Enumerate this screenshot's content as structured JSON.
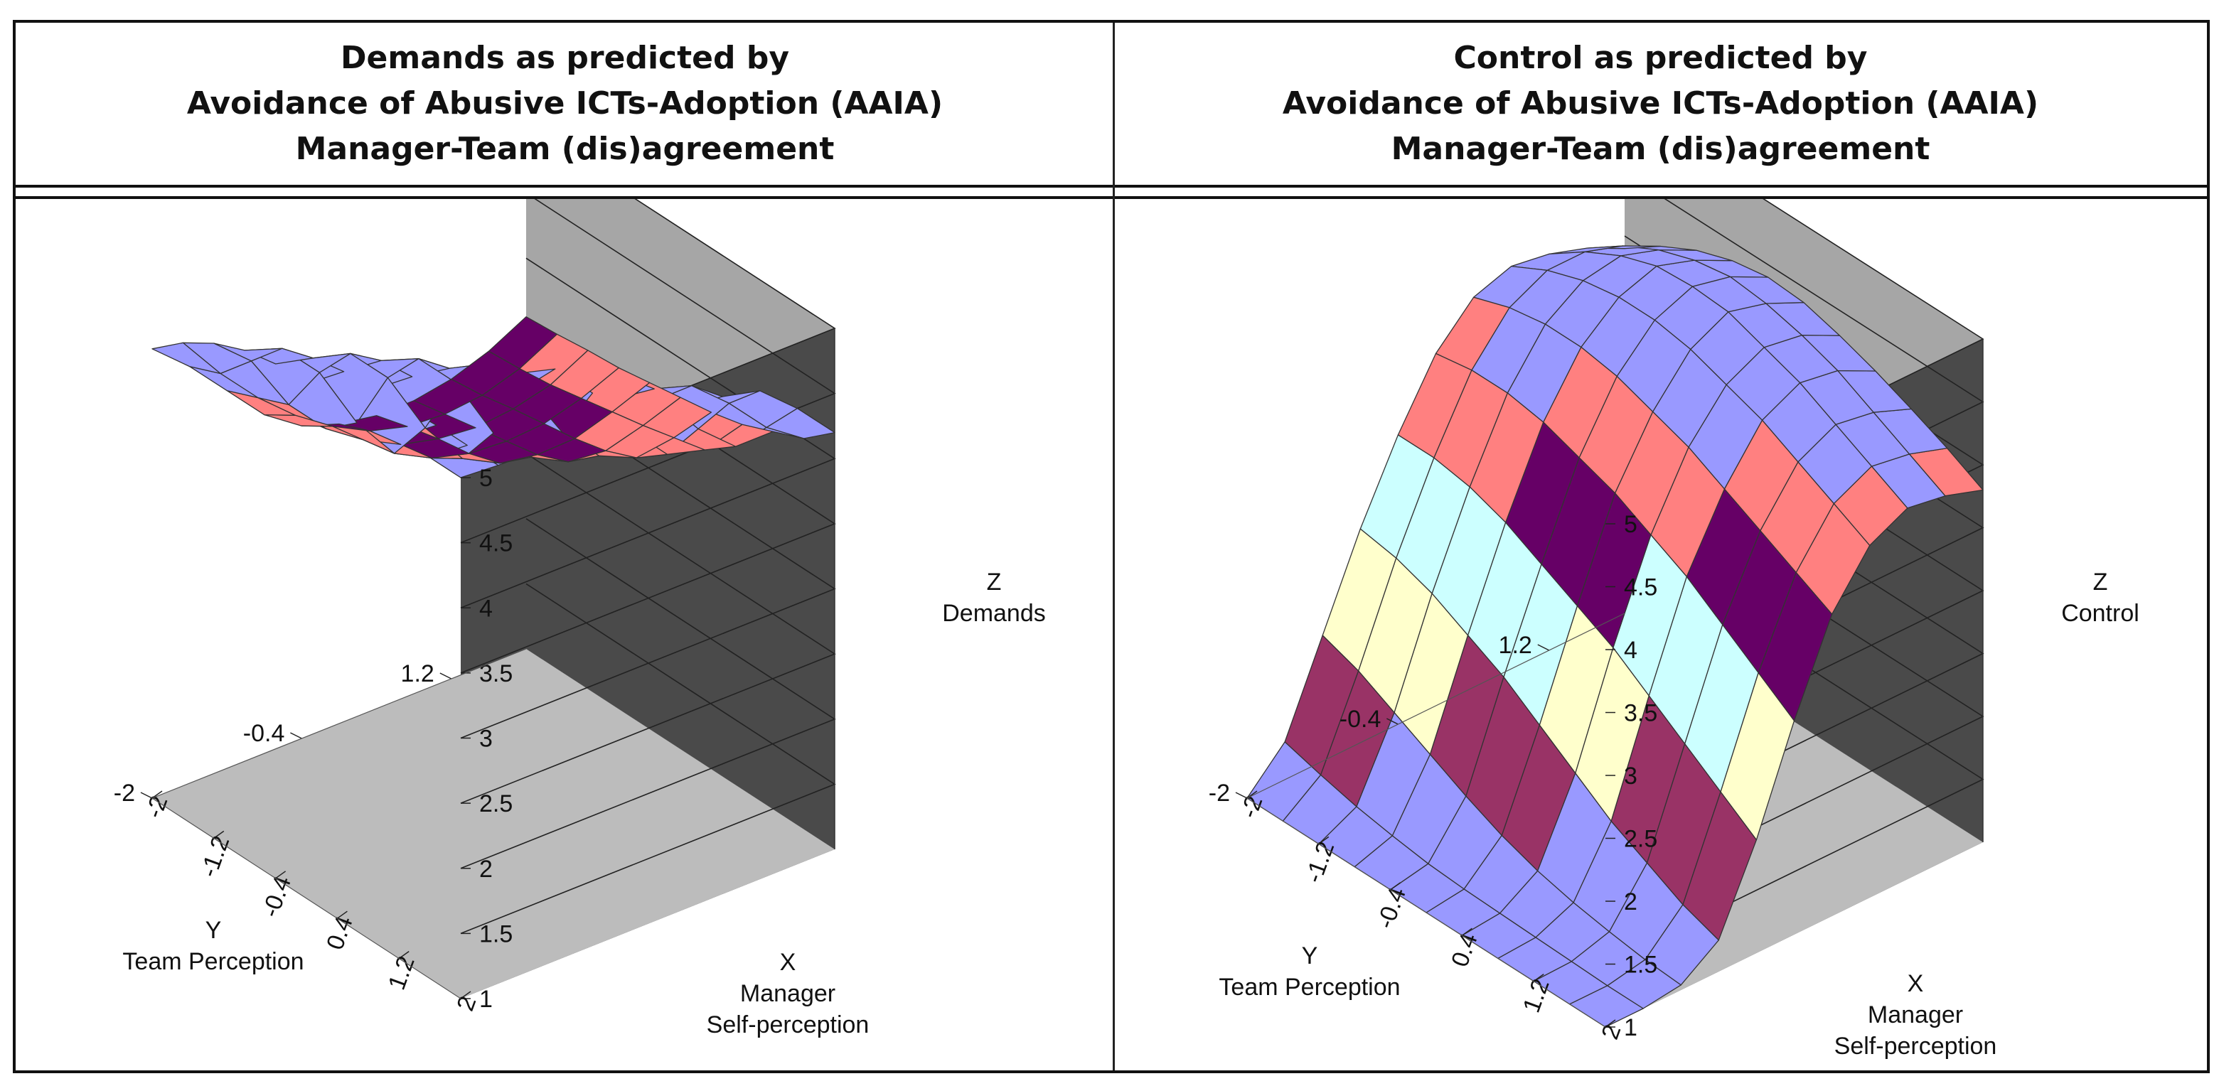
{
  "colors": {
    "back_wall": "#a6a6a6",
    "side_wall": "#4a4a4a",
    "floor": "#bcbcbc",
    "band_3_to_3_5": "#660066",
    "band_3_5_to_4": "#ff8080",
    "band_4_to_4_5": "#9999ff",
    "band_1_to_1_5": "#9999ff",
    "band_1_5_to_2": "#993366",
    "band_2_to_2_5": "#ffffcc",
    "band_2_5_to_3": "#ccffff"
  },
  "panels": [
    {
      "title_lines": [
        "Demands as predicted by",
        "Avoidance of Abusive ICTs-Adoption (AAIA)",
        "Manager-Team (dis)agreement"
      ],
      "chart_data": {
        "type": "surface3d",
        "title": "Demands as predicted by Avoidance of Abusive ICTs-Adoption (AAIA) Manager-Team (dis)agreement",
        "xlabel": [
          "X",
          "Manager",
          "Self-perception"
        ],
        "ylabel": [
          "Y",
          "Team Perception"
        ],
        "zlabel": [
          "Z",
          "Demands"
        ],
        "x_ticks": [
          "-2",
          "-1.2",
          "-0.4",
          "0.4",
          "1.2",
          "2"
        ],
        "y_ticks": [
          "1.2",
          "-0.4",
          "-2"
        ],
        "z_ticks": [
          "1",
          "1.5",
          "2",
          "2.5",
          "3",
          "3.5",
          "4",
          "4.5",
          "5"
        ],
        "xlim": [
          -2,
          2
        ],
        "ylim": [
          -2,
          2
        ],
        "zlim": [
          1,
          5
        ],
        "x": [
          -2,
          -1.6,
          -1.2,
          -0.8,
          -0.4,
          0,
          0.4,
          0.8,
          1.2,
          1.6,
          2
        ],
        "y": [
          -2,
          -1.6,
          -1.2,
          -0.8,
          -0.4,
          0,
          0.4,
          0.8,
          1.2,
          1.6,
          2
        ],
        "z": [
          [
            4.45,
            4.65,
            4.8,
            4.9,
            4.95,
            4.95,
            4.95,
            4.98,
            5.0,
            5.0,
            5.0
          ],
          [
            4.2,
            4.3,
            4.55,
            4.8,
            4.88,
            4.93,
            4.95,
            4.96,
            4.98,
            4.98,
            4.98
          ],
          [
            3.9,
            4.0,
            4.1,
            4.5,
            4.8,
            4.9,
            4.93,
            4.95,
            4.96,
            4.97,
            4.97
          ],
          [
            3.6,
            3.75,
            3.8,
            4.0,
            4.5,
            4.8,
            4.88,
            4.92,
            4.94,
            4.95,
            4.95
          ],
          [
            3.4,
            3.55,
            3.6,
            3.65,
            4.0,
            4.5,
            4.8,
            4.88,
            4.9,
            4.92,
            4.93
          ],
          [
            3.3,
            3.4,
            3.45,
            3.5,
            3.65,
            4.0,
            4.5,
            4.8,
            4.86,
            4.88,
            4.9
          ],
          [
            3.25,
            3.32,
            3.38,
            3.42,
            3.5,
            3.7,
            4.05,
            4.5,
            4.78,
            4.84,
            4.86
          ],
          [
            3.25,
            3.3,
            3.35,
            3.4,
            3.45,
            3.55,
            3.75,
            4.1,
            4.5,
            4.75,
            4.82
          ],
          [
            3.3,
            3.33,
            3.38,
            3.42,
            3.46,
            3.52,
            3.62,
            3.8,
            4.15,
            4.5,
            4.75
          ],
          [
            3.4,
            3.42,
            3.45,
            3.5,
            3.55,
            3.6,
            3.66,
            3.72,
            3.9,
            4.2,
            4.5
          ],
          [
            3.55,
            3.57,
            3.6,
            3.62,
            3.66,
            3.7,
            3.74,
            3.8,
            3.9,
            4.0,
            4.2
          ]
        ]
      }
    },
    {
      "title_lines": [
        "Control as predicted by",
        "Avoidance of Abusive ICTs-Adoption (AAIA)",
        "Manager-Team (dis)agreement"
      ],
      "chart_data": {
        "type": "surface3d",
        "title": "Control as predicted by Avoidance of Abusive ICTs-Adoption (AAIA) Manager-Team (dis)agreement",
        "xlabel": [
          "X",
          "Manager",
          "Self-perception"
        ],
        "ylabel": [
          "Y",
          "Team Perception"
        ],
        "zlabel": [
          "Z",
          "Control"
        ],
        "x_ticks": [
          "-2",
          "-1.2",
          "-0.4",
          "0.4",
          "1.2",
          "2"
        ],
        "y_ticks": [
          "1.2",
          "-0.4",
          "-2"
        ],
        "z_ticks": [
          "1",
          "1.5",
          "2",
          "2.5",
          "3",
          "3.5",
          "4",
          "4.5",
          "5"
        ],
        "xlim": [
          -2,
          2
        ],
        "ylim": [
          -2,
          2
        ],
        "zlim": [
          1,
          5
        ],
        "x": [
          -2,
          -1.6,
          -1.2,
          -0.8,
          -0.4,
          0,
          0.4,
          0.8,
          1.2,
          1.6,
          2
        ],
        "y": [
          -2,
          -1.6,
          -1.2,
          -0.8,
          -0.4,
          0,
          0.4,
          0.8,
          1.2,
          1.6,
          2
        ],
        "z": [
          [
            1.0,
            1.0,
            1.0,
            1.0,
            1.0,
            1.0,
            1.0,
            1.0,
            1.0,
            1.0,
            1.0
          ],
          [
            1.3,
            1.22,
            1.15,
            1.1,
            1.06,
            1.04,
            1.03,
            1.02,
            1.01,
            1.0,
            1.0
          ],
          [
            2.0,
            1.9,
            1.75,
            1.6,
            1.45,
            1.32,
            1.22,
            1.15,
            1.1,
            1.06,
            1.04
          ],
          [
            2.7,
            2.65,
            2.55,
            2.4,
            2.25,
            2.05,
            1.85,
            1.65,
            1.5,
            1.35,
            1.25
          ],
          [
            3.3,
            3.3,
            3.25,
            3.15,
            3.0,
            2.85,
            2.7,
            2.5,
            2.3,
            2.1,
            1.9
          ],
          [
            3.8,
            3.85,
            3.85,
            3.8,
            3.7,
            3.6,
            3.45,
            3.3,
            3.1,
            2.9,
            2.7
          ],
          [
            4.1,
            4.2,
            4.25,
            4.25,
            4.2,
            4.1,
            4.0,
            3.85,
            3.7,
            3.55,
            3.4
          ],
          [
            4.2,
            4.35,
            4.45,
            4.5,
            4.5,
            4.45,
            4.35,
            4.25,
            4.1,
            3.95,
            3.8
          ],
          [
            4.15,
            4.35,
            4.5,
            4.6,
            4.62,
            4.6,
            4.5,
            4.4,
            4.25,
            4.1,
            3.95
          ],
          [
            4.05,
            4.25,
            4.4,
            4.5,
            4.55,
            4.52,
            4.45,
            4.35,
            4.2,
            4.05,
            3.9
          ],
          [
            3.9,
            4.1,
            4.25,
            4.35,
            4.4,
            4.38,
            4.3,
            4.2,
            4.08,
            3.95,
            3.8
          ]
        ]
      }
    }
  ]
}
